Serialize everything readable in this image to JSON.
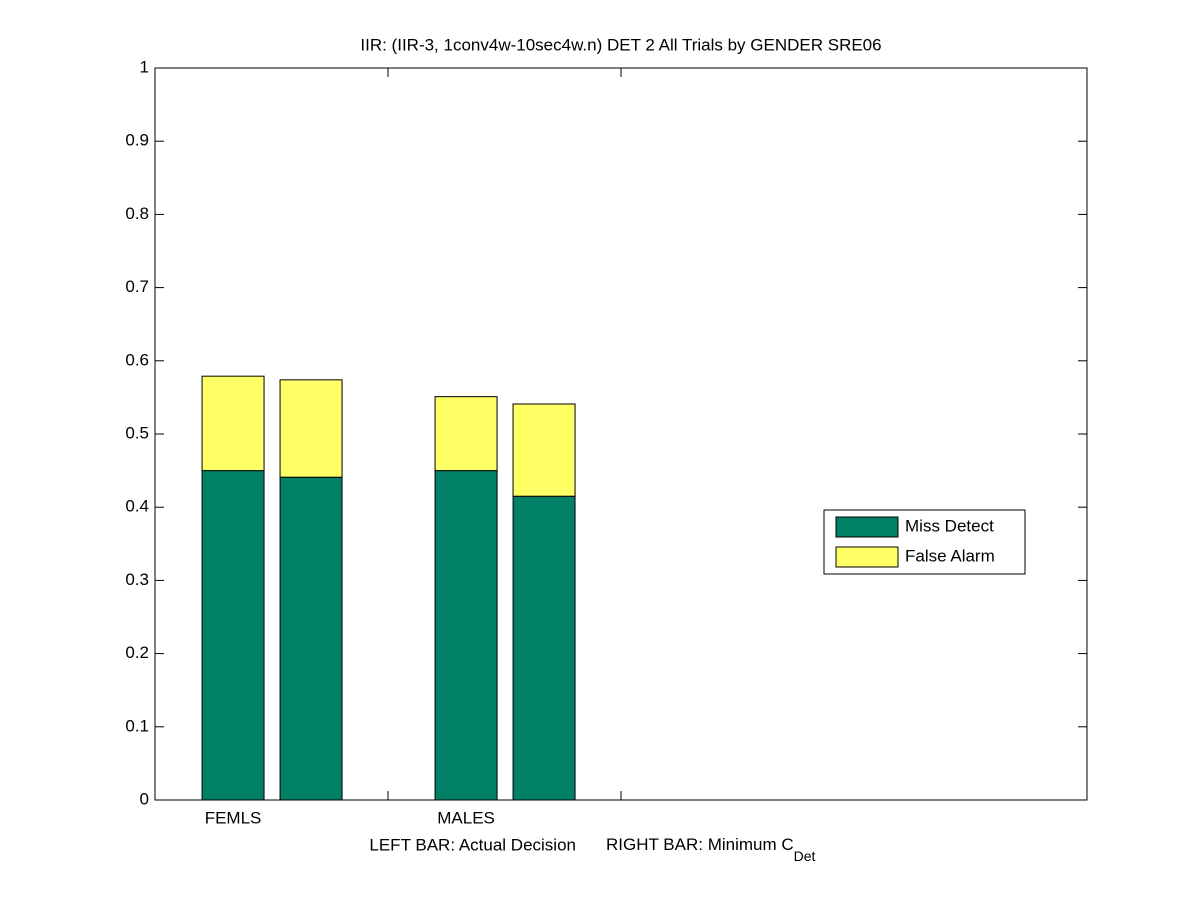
{
  "chart_data": {
    "type": "stacked_bar",
    "title": "IIR: (IIR-3, 1conv4w-10sec4w.n) DET 2 All Trials by GENDER SRE06",
    "xlabel_left": "LEFT BAR: Actual Decision",
    "xlabel_right": "RIGHT BAR: Minimum C",
    "xlabel_right_subscript": "Det",
    "categories": [
      "FEMLS",
      null,
      "MALES",
      null
    ],
    "series": [
      {
        "name": "Miss Detect",
        "color": "#008066",
        "values": [
          0.45,
          0.441,
          0.45,
          0.415
        ]
      },
      {
        "name": "False Alarm",
        "color": "#ffff66",
        "values": [
          0.129,
          0.133,
          0.101,
          0.126
        ]
      }
    ],
    "ylim": [
      0,
      1
    ],
    "yticks": [
      0,
      0.1,
      0.2,
      0.3,
      0.4,
      0.5,
      0.6,
      0.7,
      0.8,
      0.9,
      1
    ],
    "legend": "right"
  }
}
